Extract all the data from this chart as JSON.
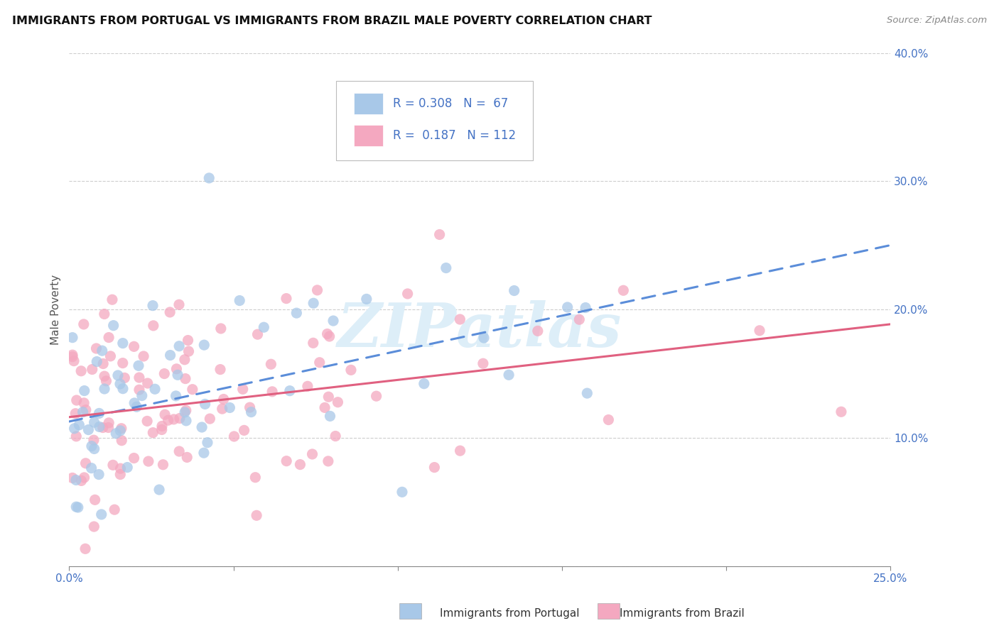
{
  "title": "IMMIGRANTS FROM PORTUGAL VS IMMIGRANTS FROM BRAZIL MALE POVERTY CORRELATION CHART",
  "source": "Source: ZipAtlas.com",
  "ylabel": "Male Poverty",
  "x_min": 0.0,
  "x_max": 0.25,
  "y_min": 0.0,
  "y_max": 0.4,
  "portugal_color": "#a8c8e8",
  "brazil_color": "#f4a8c0",
  "portugal_R": 0.308,
  "portugal_N": 67,
  "brazil_R": 0.187,
  "brazil_N": 112,
  "portugal_line_color": "#5b8dd9",
  "brazil_line_color": "#e06080",
  "tick_color": "#4472c4",
  "legend_text_color": "#4472c4",
  "watermark_color": "#d8e8f0",
  "background_color": "#ffffff",
  "grid_color": "#c8c8c8"
}
